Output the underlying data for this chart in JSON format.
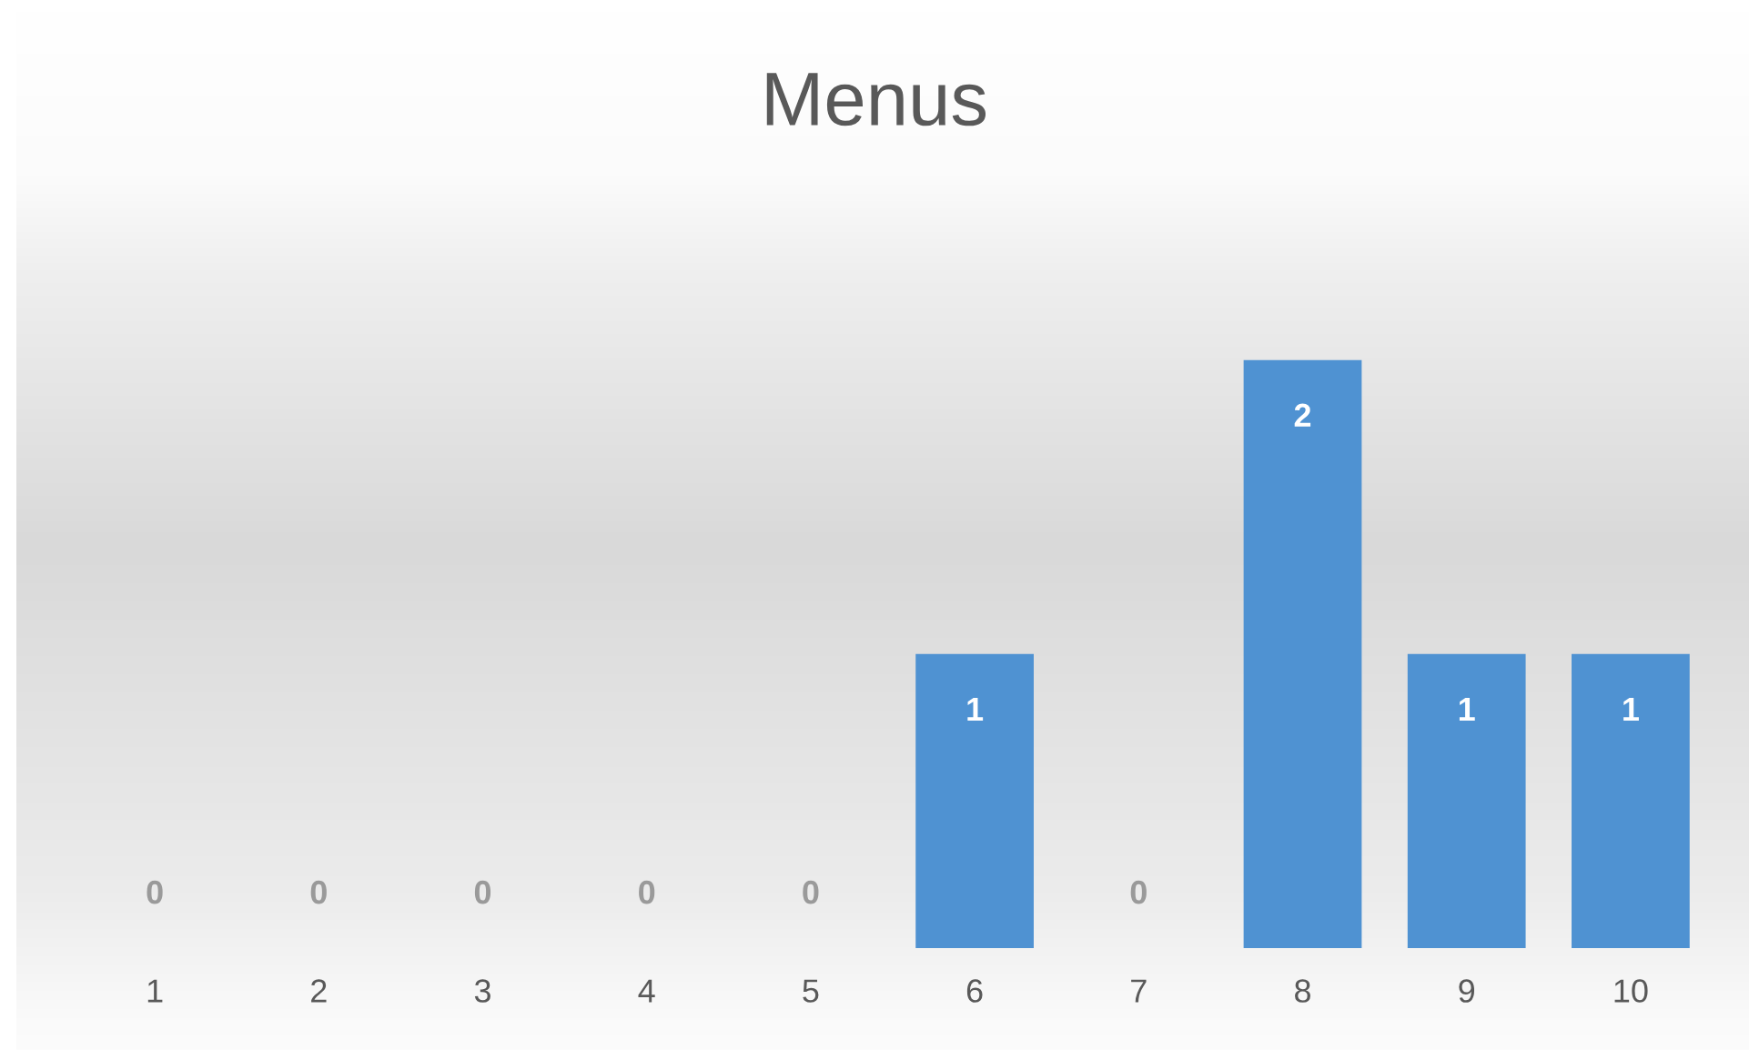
{
  "chart_data": {
    "type": "bar",
    "title": "Menus",
    "categories": [
      "1",
      "2",
      "3",
      "4",
      "5",
      "6",
      "7",
      "8",
      "9",
      "10"
    ],
    "values": [
      0,
      0,
      0,
      0,
      0,
      1,
      0,
      2,
      1,
      1
    ],
    "color": "#4f92d2",
    "data_labels": true,
    "grid": false,
    "legend": false
  }
}
